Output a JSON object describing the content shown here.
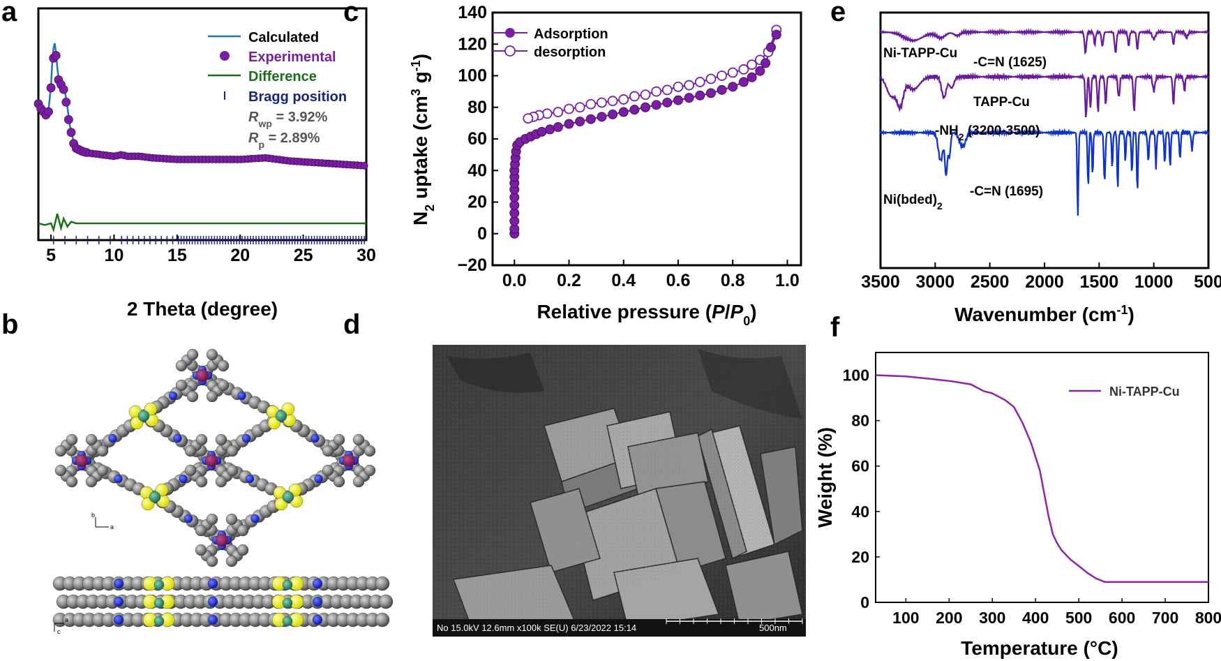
{
  "panels": {
    "a": "a",
    "b": "b",
    "c": "c",
    "d": "d",
    "e": "e",
    "f": "f"
  },
  "colors": {
    "calculated": "#1f77b4",
    "experimental": "#7b1fa2",
    "difference": "#1b6e1b",
    "bragg": "#1a237e",
    "adsorption": "#7b1fa2",
    "ni_tapp_cu": "#6a1b9a",
    "tapp_cu": "#6a1b9a",
    "ni_bded": "#1034c8",
    "tga": "#8e24aa"
  },
  "chart_data": [
    {
      "id": "a",
      "type": "line",
      "xlabel": "2 Theta (degree)",
      "ylabel": "",
      "xlim": [
        4,
        30
      ],
      "xticks": [
        5,
        10,
        15,
        20,
        25,
        30
      ],
      "legend_position": "top-right",
      "legend": {
        "calculated": "Calculated",
        "experimental": "Experimental",
        "difference": "Difference",
        "bragg": "Bragg position"
      },
      "rwp_label": "R",
      "rwp_sub": "wp",
      "rwp_value": " = 3.92%",
      "rp_label": "R",
      "rp_sub": "p",
      "rp_value": " =  2.89%",
      "series": [
        {
          "name": "Calculated",
          "x": [
            4.0,
            4.3,
            4.6,
            4.8,
            5.0,
            5.1,
            5.2,
            5.3,
            5.4,
            5.5,
            5.6,
            5.8,
            6.0,
            6.1,
            6.3,
            6.5,
            6.8,
            7.0,
            7.5,
            8.0,
            9,
            10,
            10.6,
            11,
            12,
            13,
            15,
            18,
            20,
            22,
            24,
            26,
            28,
            30
          ],
          "y": [
            0.62,
            0.58,
            0.55,
            0.58,
            0.73,
            0.88,
            0.97,
            1.0,
            0.94,
            0.85,
            0.78,
            0.75,
            0.72,
            0.7,
            0.6,
            0.48,
            0.38,
            0.34,
            0.32,
            0.31,
            0.3,
            0.29,
            0.3,
            0.29,
            0.29,
            0.28,
            0.27,
            0.27,
            0.27,
            0.27,
            0.26,
            0.25,
            0.24,
            0.23
          ]
        },
        {
          "name": "Experimental",
          "x": [
            4.0,
            4.2,
            4.4,
            4.6,
            4.8,
            5.0,
            5.3,
            5.6,
            5.8,
            6.0,
            6.2,
            6.4,
            6.6,
            6.8,
            7.0,
            7.5,
            8,
            9,
            10,
            10.6,
            11,
            12,
            13,
            15,
            18,
            20,
            22,
            24,
            26,
            28,
            30
          ],
          "y": [
            0.62,
            0.59,
            0.57,
            0.55,
            0.57,
            0.72,
            1.0,
            0.77,
            0.74,
            0.71,
            0.63,
            0.52,
            0.44,
            0.37,
            0.34,
            0.32,
            0.31,
            0.3,
            0.29,
            0.3,
            0.29,
            0.29,
            0.28,
            0.27,
            0.27,
            0.27,
            0.28,
            0.26,
            0.25,
            0.24,
            0.23
          ]
        },
        {
          "name": "Difference",
          "x": [
            4.0,
            4.5,
            5.0,
            5.2,
            5.5,
            5.8,
            6.0,
            6.3,
            6.6,
            7.0,
            8,
            10,
            15,
            20,
            25,
            30
          ],
          "y": [
            0.0,
            -0.01,
            0.0,
            -0.04,
            0.06,
            -0.03,
            0.03,
            -0.02,
            0.01,
            0.0,
            0.0,
            0.0,
            0.0,
            0.0,
            0.0,
            0.0
          ]
        }
      ]
    },
    {
      "id": "c",
      "type": "line",
      "xlabel": "Relative pressure (P/P0)",
      "ylabel": "N2 uptake (cm3 g-1)",
      "xlim": [
        -0.08,
        1.05
      ],
      "ylim": [
        -20,
        140
      ],
      "xticks": [
        0.0,
        0.2,
        0.4,
        0.6,
        0.8,
        1.0
      ],
      "yticks": [
        -20,
        0,
        20,
        40,
        60,
        80,
        100,
        120,
        140
      ],
      "legend_position": "top-left",
      "series": [
        {
          "name": "Adsorption",
          "x": [
            0.0,
            0.0,
            0.0,
            0.0,
            0.0,
            0.0,
            0.0,
            0.0,
            0.0,
            0.0,
            0.002,
            0.004,
            0.006,
            0.01,
            0.02,
            0.04,
            0.06,
            0.08,
            0.1,
            0.13,
            0.16,
            0.2,
            0.24,
            0.28,
            0.32,
            0.36,
            0.4,
            0.44,
            0.48,
            0.52,
            0.56,
            0.6,
            0.64,
            0.68,
            0.72,
            0.76,
            0.8,
            0.84,
            0.87,
            0.9,
            0.92,
            0.94,
            0.96
          ],
          "y": [
            0,
            3,
            8,
            13,
            18,
            23,
            28,
            32,
            36,
            40,
            44,
            48,
            52,
            56,
            58,
            60,
            61.5,
            63,
            64.5,
            66,
            67.5,
            69.5,
            71,
            72.5,
            74,
            75.5,
            77,
            78.5,
            80,
            81.5,
            83,
            84.5,
            86,
            87.5,
            89,
            91,
            93,
            96,
            99,
            103,
            108,
            118,
            126
          ]
        },
        {
          "name": "desorption",
          "x": [
            0.96,
            0.93,
            0.9,
            0.87,
            0.84,
            0.8,
            0.76,
            0.72,
            0.68,
            0.64,
            0.6,
            0.56,
            0.52,
            0.48,
            0.44,
            0.4,
            0.36,
            0.32,
            0.28,
            0.24,
            0.2,
            0.16,
            0.12,
            0.09,
            0.07,
            0.05
          ],
          "y": [
            129,
            115,
            110,
            107,
            104,
            102,
            100,
            98,
            96,
            94,
            93,
            91,
            90,
            88,
            87,
            85,
            84,
            83,
            82,
            80,
            79,
            77,
            76,
            75,
            74,
            73
          ]
        }
      ]
    },
    {
      "id": "e",
      "type": "line",
      "xlabel": "Wavenumber (cm-1)",
      "ylabel": "",
      "xlim": [
        3500,
        500
      ],
      "xticks": [
        3500,
        3000,
        2500,
        2000,
        1500,
        1000,
        500
      ],
      "annotations": {
        "ni_tapp_cu": "Ni-TAPP-Cu",
        "cn_1625": "-C=N (1625)",
        "tapp_cu": "TAPP-Cu",
        "nh2": "-NH",
        "nh2_sub": "2",
        "nh2_range": " (3200-3500)",
        "ni_bded": "Ni(bded)",
        "ni_bded_sub": "2",
        "cn_1695": "-C=N (1695)"
      }
    },
    {
      "id": "f",
      "type": "line",
      "xlabel": "Temperature (°C)",
      "ylabel": "Weight (%)",
      "xlim": [
        30,
        800
      ],
      "ylim": [
        0,
        110
      ],
      "xticks": [
        100,
        200,
        300,
        400,
        500,
        600,
        700,
        800
      ],
      "yticks": [
        0,
        20,
        40,
        60,
        80,
        100
      ],
      "legend_position": "top-right",
      "series": [
        {
          "name": "Ni-TAPP-Cu",
          "x": [
            30,
            100,
            150,
            200,
            250,
            280,
            300,
            330,
            350,
            370,
            390,
            400,
            410,
            420,
            430,
            440,
            450,
            460,
            480,
            500,
            520,
            540,
            560,
            600,
            700,
            800
          ],
          "y": [
            100,
            99.5,
            98.5,
            97.5,
            96,
            93,
            92,
            89,
            86,
            79,
            70,
            64,
            58,
            48,
            38,
            30,
            26,
            23,
            19,
            16,
            13,
            10.5,
            9,
            9,
            9,
            9
          ]
        }
      ]
    }
  ],
  "sem": {
    "info": "No 15.0kV 12.6mm x100k SE(U) 6/23/2022 15:14",
    "scale": "500nm"
  },
  "structure": {
    "axis_b_top": "b",
    "axis_a_top": "a",
    "axis_a_bottom": "a",
    "axis_c_bottom": "c"
  }
}
